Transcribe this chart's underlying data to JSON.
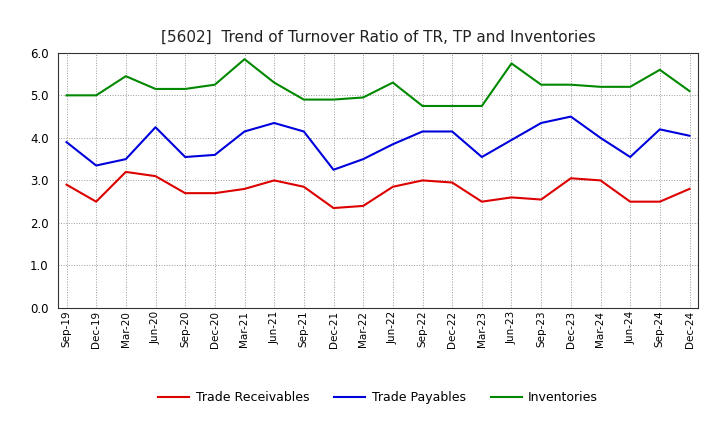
{
  "title": "[5602]  Trend of Turnover Ratio of TR, TP and Inventories",
  "x_labels": [
    "Sep-19",
    "Dec-19",
    "Mar-20",
    "Jun-20",
    "Sep-20",
    "Dec-20",
    "Mar-21",
    "Jun-21",
    "Sep-21",
    "Dec-21",
    "Mar-22",
    "Jun-22",
    "Sep-22",
    "Dec-22",
    "Mar-23",
    "Jun-23",
    "Sep-23",
    "Dec-23",
    "Mar-24",
    "Jun-24",
    "Sep-24",
    "Dec-24"
  ],
  "trade_receivables": [
    2.9,
    2.5,
    3.2,
    3.1,
    2.7,
    2.7,
    2.8,
    3.0,
    2.85,
    2.35,
    2.4,
    2.85,
    3.0,
    2.95,
    2.5,
    2.6,
    2.55,
    3.05,
    3.0,
    2.5,
    2.5,
    2.8
  ],
  "trade_payables": [
    3.9,
    3.35,
    3.5,
    4.25,
    3.55,
    3.6,
    4.15,
    4.35,
    4.15,
    3.25,
    3.5,
    3.85,
    4.15,
    4.15,
    3.55,
    3.95,
    4.35,
    4.5,
    4.0,
    3.55,
    4.2,
    4.05
  ],
  "inventories": [
    5.0,
    5.0,
    5.45,
    5.15,
    5.15,
    5.25,
    5.85,
    5.3,
    4.9,
    4.9,
    4.95,
    5.3,
    4.75,
    4.75,
    4.75,
    5.75,
    5.25,
    5.25,
    5.2,
    5.2,
    5.6,
    5.1
  ],
  "ylim": [
    0.0,
    6.0
  ],
  "yticks": [
    0.0,
    1.0,
    2.0,
    3.0,
    4.0,
    5.0,
    6.0
  ],
  "line_color_tr": "#dd0000",
  "line_color_tp": "#0000dd",
  "line_color_inv": "#008800",
  "bg_color": "#ffffff",
  "grid_color": "#999999",
  "legend_tr": "Trade Receivables",
  "legend_tp": "Trade Payables",
  "legend_inv": "Inventories"
}
